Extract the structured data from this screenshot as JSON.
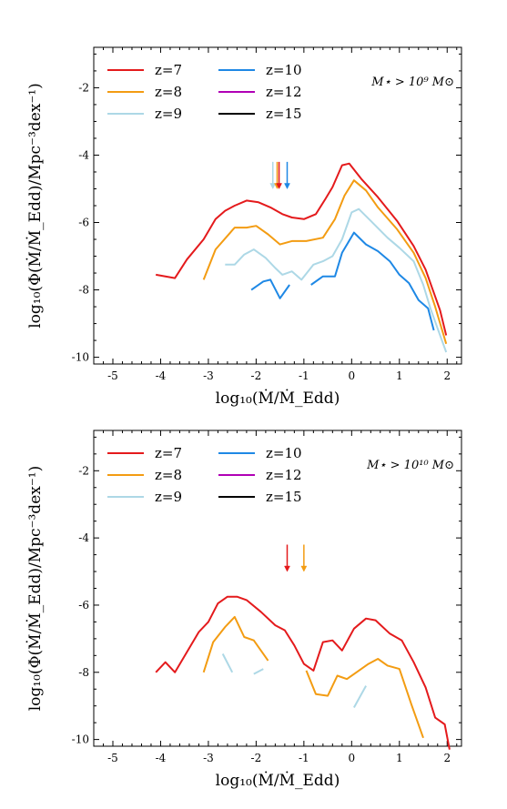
{
  "chart_data": [
    {
      "type": "line",
      "annotation": "M⋆ > 10⁹ M⊙",
      "xlabel": "log₁₀(Ṁ/Ṁ_Edd)",
      "ylabel": "log₁₀(Φ(Ṁ/Ṁ_Edd)/Mpc⁻³dex⁻¹)",
      "xlim": [
        -5.4,
        2.3
      ],
      "ylim": [
        -10.2,
        -0.8
      ],
      "xticks": [
        -5,
        -4,
        -3,
        -2,
        -1,
        0,
        1,
        2
      ],
      "yticks": [
        -2,
        -4,
        -6,
        -8,
        -10
      ],
      "legend_position": "top-left",
      "series": [
        {
          "name": "z=7",
          "color": "#e41a1c",
          "segments": [
            [
              [
                -4.1,
                -7.55
              ],
              [
                -3.7,
                -7.65
              ],
              [
                -3.45,
                -7.1
              ],
              [
                -3.1,
                -6.5
              ],
              [
                -2.85,
                -5.9
              ],
              [
                -2.65,
                -5.65
              ],
              [
                -2.45,
                -5.5
              ],
              [
                -2.2,
                -5.35
              ],
              [
                -1.95,
                -5.4
              ],
              [
                -1.7,
                -5.55
              ],
              [
                -1.45,
                -5.75
              ],
              [
                -1.25,
                -5.85
              ],
              [
                -1.0,
                -5.9
              ],
              [
                -0.75,
                -5.75
              ],
              [
                -0.55,
                -5.3
              ],
              [
                -0.4,
                -4.95
              ],
              [
                -0.2,
                -4.3
              ],
              [
                -0.05,
                -4.25
              ],
              [
                0.2,
                -4.7
              ],
              [
                0.55,
                -5.25
              ],
              [
                0.95,
                -5.95
              ],
              [
                1.3,
                -6.7
              ],
              [
                1.55,
                -7.4
              ],
              [
                1.7,
                -8.0
              ],
              [
                1.85,
                -8.6
              ],
              [
                1.98,
                -9.35
              ]
            ]
          ]
        },
        {
          "name": "z=8",
          "color": "#f39c12",
          "segments": [
            [
              [
                -3.1,
                -7.7
              ],
              [
                -2.85,
                -6.8
              ],
              [
                -2.45,
                -6.15
              ],
              [
                -2.2,
                -6.15
              ],
              [
                -2.0,
                -6.1
              ],
              [
                -1.75,
                -6.35
              ],
              [
                -1.5,
                -6.65
              ],
              [
                -1.25,
                -6.55
              ],
              [
                -0.95,
                -6.55
              ],
              [
                -0.6,
                -6.45
              ],
              [
                -0.35,
                -5.9
              ],
              [
                -0.15,
                -5.2
              ],
              [
                0.05,
                -4.75
              ],
              [
                0.3,
                -5.05
              ],
              [
                0.55,
                -5.55
              ],
              [
                0.95,
                -6.2
              ],
              [
                1.3,
                -6.9
              ],
              [
                1.55,
                -7.65
              ],
              [
                1.75,
                -8.5
              ],
              [
                1.98,
                -9.6
              ]
            ]
          ]
        },
        {
          "name": "z=9",
          "color": "#add8e6",
          "segments": [
            [
              [
                -2.65,
                -7.25
              ],
              [
                -2.45,
                -7.25
              ],
              [
                -2.25,
                -6.95
              ],
              [
                -2.05,
                -6.8
              ],
              [
                -1.8,
                -7.05
              ],
              [
                -1.6,
                -7.35
              ],
              [
                -1.45,
                -7.55
              ],
              [
                -1.25,
                -7.45
              ],
              [
                -1.05,
                -7.7
              ],
              [
                -0.8,
                -7.25
              ],
              [
                -0.6,
                -7.15
              ],
              [
                -0.4,
                -7.0
              ],
              [
                -0.2,
                -6.5
              ],
              [
                0.0,
                -5.7
              ],
              [
                0.15,
                -5.6
              ],
              [
                0.4,
                -5.95
              ],
              [
                0.75,
                -6.45
              ],
              [
                1.0,
                -6.75
              ],
              [
                1.3,
                -7.15
              ],
              [
                1.5,
                -7.85
              ],
              [
                1.65,
                -8.55
              ],
              [
                1.8,
                -9.15
              ],
              [
                1.98,
                -9.85
              ]
            ]
          ]
        },
        {
          "name": "z=10",
          "color": "#1e88e5",
          "segments": [
            [
              [
                -2.1,
                -8.0
              ],
              [
                -1.85,
                -7.75
              ],
              [
                -1.7,
                -7.7
              ],
              [
                -1.5,
                -8.25
              ],
              [
                -1.3,
                -7.85
              ]
            ],
            [
              [
                -0.85,
                -7.85
              ],
              [
                -0.6,
                -7.6
              ],
              [
                -0.35,
                -7.6
              ],
              [
                -0.2,
                -6.9
              ],
              [
                0.05,
                -6.3
              ],
              [
                0.3,
                -6.65
              ],
              [
                0.55,
                -6.85
              ],
              [
                0.8,
                -7.15
              ],
              [
                1.0,
                -7.55
              ],
              [
                1.2,
                -7.8
              ],
              [
                1.4,
                -8.3
              ],
              [
                1.6,
                -8.55
              ],
              [
                1.72,
                -9.2
              ]
            ]
          ]
        },
        {
          "name": "z=12",
          "color": "#b000b5",
          "segments": []
        },
        {
          "name": "z=15",
          "color": "#000000",
          "segments": []
        }
      ],
      "arrows": [
        {
          "x": -1.65,
          "color": "#add8e6"
        },
        {
          "x": -1.56,
          "color": "#f39c12"
        },
        {
          "x": -1.52,
          "color": "#e41a1c"
        },
        {
          "x": -1.35,
          "color": "#1e88e5"
        }
      ]
    },
    {
      "type": "line",
      "annotation": "M⋆ > 10¹⁰ M⊙",
      "xlabel": "log₁₀(Ṁ/Ṁ_Edd)",
      "ylabel": "log₁₀(Φ(Ṁ/Ṁ_Edd)/Mpc⁻³dex⁻¹)",
      "xlim": [
        -5.4,
        2.3
      ],
      "ylim": [
        -10.2,
        -0.8
      ],
      "xticks": [
        -5,
        -4,
        -3,
        -2,
        -1,
        0,
        1,
        2
      ],
      "yticks": [
        -2,
        -4,
        -6,
        -8,
        -10
      ],
      "legend_position": "top-left",
      "series": [
        {
          "name": "z=7",
          "color": "#e41a1c",
          "segments": [
            [
              [
                -4.1,
                -8.0
              ],
              [
                -3.9,
                -7.7
              ],
              [
                -3.7,
                -8.0
              ],
              [
                -3.45,
                -7.4
              ],
              [
                -3.2,
                -6.8
              ],
              [
                -3.0,
                -6.5
              ],
              [
                -2.8,
                -5.95
              ],
              [
                -2.6,
                -5.75
              ],
              [
                -2.4,
                -5.75
              ],
              [
                -2.2,
                -5.85
              ],
              [
                -1.9,
                -6.2
              ],
              [
                -1.6,
                -6.6
              ],
              [
                -1.4,
                -6.75
              ],
              [
                -1.2,
                -7.2
              ],
              [
                -1.0,
                -7.75
              ],
              [
                -0.8,
                -7.95
              ],
              [
                -0.6,
                -7.1
              ],
              [
                -0.4,
                -7.05
              ],
              [
                -0.2,
                -7.35
              ],
              [
                0.05,
                -6.7
              ],
              [
                0.3,
                -6.4
              ],
              [
                0.5,
                -6.45
              ],
              [
                0.8,
                -6.85
              ],
              [
                1.05,
                -7.05
              ],
              [
                1.3,
                -7.7
              ],
              [
                1.55,
                -8.45
              ],
              [
                1.75,
                -9.35
              ],
              [
                1.95,
                -9.55
              ],
              [
                2.05,
                -10.3
              ]
            ]
          ]
        },
        {
          "name": "z=8",
          "color": "#f39c12",
          "segments": [
            [
              [
                -3.1,
                -8.0
              ],
              [
                -2.9,
                -7.1
              ],
              [
                -2.65,
                -6.65
              ],
              [
                -2.45,
                -6.35
              ],
              [
                -2.25,
                -6.95
              ],
              [
                -2.05,
                -7.05
              ],
              [
                -1.75,
                -7.65
              ]
            ],
            [
              [
                -0.95,
                -7.95
              ],
              [
                -0.75,
                -8.65
              ],
              [
                -0.5,
                -8.7
              ],
              [
                -0.3,
                -8.1
              ],
              [
                -0.1,
                -8.2
              ],
              [
                0.1,
                -8.0
              ],
              [
                0.35,
                -7.75
              ],
              [
                0.55,
                -7.6
              ],
              [
                0.75,
                -7.8
              ],
              [
                1.0,
                -7.9
              ],
              [
                1.25,
                -8.95
              ],
              [
                1.5,
                -9.95
              ]
            ]
          ]
        },
        {
          "name": "z=9",
          "color": "#add8e6",
          "segments": [
            [
              [
                -2.7,
                -7.45
              ],
              [
                -2.5,
                -8.0
              ]
            ],
            [
              [
                -2.05,
                -8.05
              ],
              [
                -1.85,
                -7.9
              ]
            ],
            [
              [
                0.05,
                -9.05
              ],
              [
                0.3,
                -8.4
              ]
            ]
          ]
        },
        {
          "name": "z=10",
          "color": "#1e88e5",
          "segments": []
        },
        {
          "name": "z=12",
          "color": "#b000b5",
          "segments": []
        },
        {
          "name": "z=15",
          "color": "#000000",
          "segments": []
        }
      ],
      "arrows": [
        {
          "x": -1.35,
          "color": "#e41a1c"
        },
        {
          "x": -1.0,
          "color": "#f39c12"
        }
      ]
    }
  ]
}
